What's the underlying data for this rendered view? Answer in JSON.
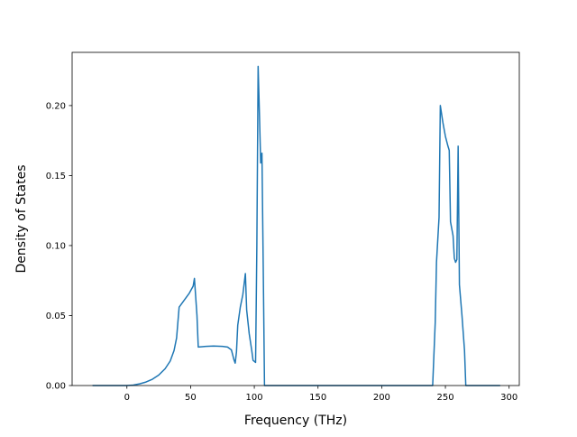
{
  "chart_data": {
    "type": "line",
    "xlabel": "Frequency (THz)",
    "ylabel": "Density of States",
    "xlim": [
      -43,
      308
    ],
    "ylim": [
      0,
      0.238
    ],
    "xticks": [
      0,
      50,
      100,
      150,
      200,
      250,
      300
    ],
    "xtick_labels": [
      "0",
      "50",
      "100",
      "150",
      "200",
      "250",
      "300"
    ],
    "yticks": [
      0.0,
      0.05,
      0.1,
      0.15,
      0.2
    ],
    "ytick_labels": [
      "0.00",
      "0.05",
      "0.10",
      "0.15",
      "0.20"
    ],
    "grid": false,
    "legend": "none",
    "series": [
      {
        "color": "#1f77b4",
        "points": [
          [
            -27,
            0.0
          ],
          [
            0,
            0.0
          ],
          [
            5,
            0.0003
          ],
          [
            10,
            0.0012
          ],
          [
            15,
            0.0025
          ],
          [
            20,
            0.0045
          ],
          [
            25,
            0.0075
          ],
          [
            30,
            0.012
          ],
          [
            34,
            0.0175
          ],
          [
            37,
            0.025
          ],
          [
            39,
            0.034
          ],
          [
            40,
            0.045
          ],
          [
            41,
            0.056
          ],
          [
            45,
            0.061
          ],
          [
            49,
            0.066
          ],
          [
            52,
            0.071
          ],
          [
            53,
            0.0765
          ],
          [
            55,
            0.05
          ],
          [
            56,
            0.0275
          ],
          [
            62,
            0.028
          ],
          [
            68,
            0.0282
          ],
          [
            75,
            0.028
          ],
          [
            79,
            0.0275
          ],
          [
            82,
            0.0255
          ],
          [
            84,
            0.0185
          ],
          [
            85,
            0.016
          ],
          [
            86,
            0.024
          ],
          [
            87,
            0.043
          ],
          [
            89,
            0.056
          ],
          [
            91,
            0.065
          ],
          [
            93,
            0.08
          ],
          [
            94,
            0.054
          ],
          [
            96,
            0.037
          ],
          [
            98,
            0.025
          ],
          [
            99,
            0.018
          ],
          [
            101,
            0.0165
          ],
          [
            102,
            0.1
          ],
          [
            103,
            0.228
          ],
          [
            104,
            0.195
          ],
          [
            105,
            0.159
          ],
          [
            106,
            0.166
          ],
          [
            107,
            0.085
          ],
          [
            108,
            0.0
          ],
          [
            150,
            0.0
          ],
          [
            200,
            0.0
          ],
          [
            240,
            0.0
          ],
          [
            242,
            0.045
          ],
          [
            243,
            0.088
          ],
          [
            245,
            0.12
          ],
          [
            246,
            0.2
          ],
          [
            248,
            0.188
          ],
          [
            250,
            0.178
          ],
          [
            252,
            0.171
          ],
          [
            253,
            0.168
          ],
          [
            254,
            0.117
          ],
          [
            256,
            0.107
          ],
          [
            257,
            0.091
          ],
          [
            258,
            0.088
          ],
          [
            259,
            0.09
          ],
          [
            260,
            0.171
          ],
          [
            261,
            0.072
          ],
          [
            263,
            0.05
          ],
          [
            265,
            0.025
          ],
          [
            266,
            0.0
          ],
          [
            280,
            0.0
          ],
          [
            293,
            0.0
          ]
        ]
      }
    ]
  }
}
